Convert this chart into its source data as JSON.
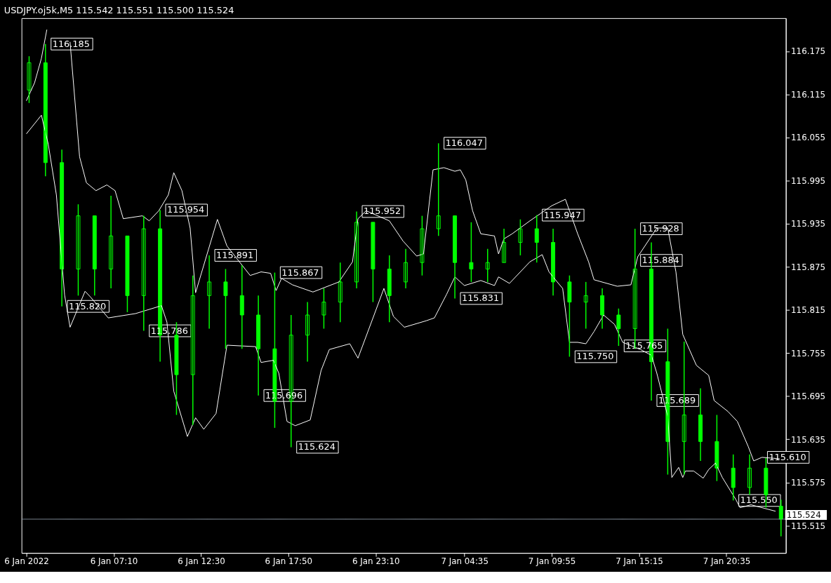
{
  "chart_data": {
    "type": "candlestick",
    "title": "USDJPY.oj5k,M5  115.542 115.551 115.500 115.524",
    "color": "#00ff00",
    "x": [
      "2022-01-06T02:00",
      "2022-01-06T03:00",
      "2022-01-06T04:00",
      "2022-01-06T05:00",
      "2022-01-06T06:00",
      "2022-01-06T07:00",
      "2022-01-06T08:00",
      "2022-01-06T09:00",
      "2022-01-06T10:00",
      "2022-01-06T11:00",
      "2022-01-06T12:00",
      "2022-01-06T13:00",
      "2022-01-06T14:00",
      "2022-01-06T15:00",
      "2022-01-06T16:00",
      "2022-01-06T17:00",
      "2022-01-06T18:00",
      "2022-01-06T19:00",
      "2022-01-06T20:00",
      "2022-01-06T21:00",
      "2022-01-06T22:00",
      "2022-01-06T23:00",
      "2022-01-07T00:00",
      "2022-01-07T01:00",
      "2022-01-07T02:00",
      "2022-01-07T03:00",
      "2022-01-07T04:00",
      "2022-01-07T05:00",
      "2022-01-07T06:00",
      "2022-01-07T07:00",
      "2022-01-07T08:00",
      "2022-01-07T09:00",
      "2022-01-07T10:00",
      "2022-01-07T11:00",
      "2022-01-07T12:00",
      "2022-01-07T13:00",
      "2022-01-07T14:00",
      "2022-01-07T15:00",
      "2022-01-07T16:00",
      "2022-01-07T17:00",
      "2022-01-07T18:00",
      "2022-01-07T19:00",
      "2022-01-07T20:00",
      "2022-01-07T21:00",
      "2022-01-07T22:00",
      "2022-01-07T23:00",
      "2022-01-07T23:55"
    ],
    "ohlc": [
      [
        116.121,
        116.168,
        116.103,
        116.159
      ],
      [
        116.159,
        116.185,
        116.001,
        116.02
      ],
      [
        116.02,
        116.038,
        115.82,
        115.872
      ],
      [
        115.872,
        115.962,
        115.835,
        115.946
      ],
      [
        115.946,
        115.946,
        115.835,
        115.872
      ],
      [
        115.872,
        115.974,
        115.845,
        115.918
      ],
      [
        115.918,
        115.918,
        115.812,
        115.835
      ],
      [
        115.835,
        115.946,
        115.786,
        115.928
      ],
      [
        115.928,
        115.954,
        115.743,
        115.78
      ],
      [
        115.78,
        115.798,
        115.669,
        115.725
      ],
      [
        115.725,
        115.863,
        115.655,
        115.835
      ],
      [
        115.835,
        115.891,
        115.789,
        115.854
      ],
      [
        115.854,
        115.872,
        115.761,
        115.835
      ],
      [
        115.835,
        115.877,
        115.761,
        115.808
      ],
      [
        115.808,
        115.835,
        115.696,
        115.761
      ],
      [
        115.761,
        115.867,
        115.651,
        115.688
      ],
      [
        115.688,
        115.808,
        115.624,
        115.78
      ],
      [
        115.78,
        115.826,
        115.743,
        115.808
      ],
      [
        115.808,
        115.845,
        115.789,
        115.826
      ],
      [
        115.826,
        115.881,
        115.798,
        115.854
      ],
      [
        115.854,
        115.952,
        115.845,
        115.937
      ],
      [
        115.937,
        115.937,
        115.826,
        115.872
      ],
      [
        115.872,
        115.891,
        115.798,
        115.835
      ],
      [
        115.854,
        115.9,
        115.845,
        115.881
      ],
      [
        115.881,
        115.946,
        115.863,
        115.928
      ],
      [
        115.928,
        116.047,
        115.918,
        115.946
      ],
      [
        115.946,
        115.946,
        115.831,
        115.881
      ],
      [
        115.881,
        115.937,
        115.854,
        115.872
      ],
      [
        115.872,
        115.9,
        115.854,
        115.881
      ],
      [
        115.881,
        115.928,
        115.881,
        115.909
      ],
      [
        115.909,
        115.941,
        115.891,
        115.928
      ],
      [
        115.928,
        115.947,
        115.881,
        115.909
      ],
      [
        115.909,
        115.928,
        115.835,
        115.854
      ],
      [
        115.854,
        115.863,
        115.75,
        115.826
      ],
      [
        115.826,
        115.854,
        115.789,
        115.835
      ],
      [
        115.835,
        115.845,
        115.789,
        115.808
      ],
      [
        115.808,
        115.817,
        115.765,
        115.789
      ],
      [
        115.789,
        115.928,
        115.761,
        115.872
      ],
      [
        115.872,
        115.909,
        115.689,
        115.743
      ],
      [
        115.743,
        115.789,
        115.586,
        115.632
      ],
      [
        115.632,
        115.771,
        115.586,
        115.669
      ],
      [
        115.669,
        115.706,
        115.605,
        115.632
      ],
      [
        115.632,
        115.669,
        115.577,
        115.595
      ],
      [
        115.595,
        115.614,
        115.55,
        115.568
      ],
      [
        115.568,
        115.614,
        115.558,
        115.595
      ],
      [
        115.595,
        115.609,
        115.54,
        115.558
      ],
      [
        115.542,
        115.551,
        115.5,
        115.524
      ]
    ],
    "series": [
      {
        "type": "line",
        "color": "#ffffff",
        "x": [
          "2022-01-06T01:50",
          "2022-01-06T02:20",
          "2022-01-06T02:45",
          "2022-01-06T03:05",
          "2022-01-06T03:35",
          "2022-01-06T04:30",
          "2022-01-06T05:05",
          "2022-01-06T05:30",
          "2022-01-06T06:05",
          "2022-01-06T06:45",
          "2022-01-06T07:15",
          "2022-01-06T07:45",
          "2022-01-06T08:55",
          "2022-01-06T09:20",
          "2022-01-06T09:55",
          "2022-01-06T10:30",
          "2022-01-06T10:50",
          "2022-01-06T11:20",
          "2022-01-06T11:50",
          "2022-01-06T12:10",
          "2022-01-06T13:30",
          "2022-01-06T14:05",
          "2022-01-06T15:30",
          "2022-01-06T16:10",
          "2022-01-06T16:45",
          "2022-01-06T17:05",
          "2022-01-06T17:25",
          "2022-01-06T18:05",
          "2022-01-06T19:20",
          "2022-01-06T20:55",
          "2022-01-06T21:45",
          "2022-01-06T22:05",
          "2022-01-06T22:35",
          "2022-01-07T00:00",
          "2022-01-07T00:50",
          "2022-01-07T01:40",
          "2022-01-07T02:05",
          "2022-01-07T02:40",
          "2022-01-07T03:20",
          "2022-01-07T04:00",
          "2022-01-07T04:20",
          "2022-01-07T04:40",
          "2022-01-07T05:05",
          "2022-01-07T05:35",
          "2022-01-07T06:25",
          "2022-01-07T06:40",
          "2022-01-07T07:00",
          "2022-01-07T07:30",
          "2022-01-07T08:35",
          "2022-01-07T09:55",
          "2022-01-07T10:45",
          "2022-01-07T11:30",
          "2022-01-07T12:10",
          "2022-01-07T12:30",
          "2022-01-07T13:55",
          "2022-01-07T14:45",
          "2022-01-07T15:10",
          "2022-01-07T16:20",
          "2022-01-07T17:00",
          "2022-01-07T17:30",
          "2022-01-07T17:55",
          "2022-01-07T18:45",
          "2022-01-07T19:30",
          "2022-01-07T19:50",
          "2022-01-07T20:40",
          "2022-01-07T21:15",
          "2022-01-07T21:55",
          "2022-01-07T22:15",
          "2022-01-07T22:45",
          "2022-01-07T23:50"
        ],
        "values": [
          116.106,
          116.131,
          116.165,
          116.205,
          null,
          116.188,
          116.028,
          115.992,
          115.981,
          115.989,
          115.981,
          115.942,
          115.946,
          115.939,
          115.953,
          115.975,
          116.006,
          115.981,
          115.929,
          115.839,
          115.941,
          115.904,
          115.863,
          115.868,
          115.866,
          115.842,
          115.859,
          115.85,
          115.84,
          115.854,
          115.882,
          115.942,
          115.953,
          115.939,
          115.911,
          115.89,
          115.893,
          116.01,
          116.013,
          116.008,
          116.01,
          115.996,
          115.953,
          115.921,
          115.918,
          115.893,
          115.914,
          115.921,
          115.939,
          115.96,
          115.969,
          115.921,
          115.882,
          115.857,
          115.848,
          115.85,
          115.889,
          115.929,
          115.929,
          115.868,
          115.781,
          115.738,
          115.724,
          115.689,
          115.674,
          115.66,
          115.625,
          115.605,
          115.61,
          115.608
        ]
      },
      {
        "type": "line",
        "color": "#ffffff",
        "x": [
          "2022-01-06T01:50",
          "2022-01-06T02:45",
          "2022-01-06T03:10",
          "2022-01-06T03:40",
          "2022-01-06T04:10",
          "2022-01-06T04:30",
          "2022-01-06T05:25",
          "2022-01-06T05:45",
          "2022-01-06T06:50",
          "2022-01-06T08:30",
          "2022-01-06T10:05",
          "2022-01-06T10:25",
          "2022-01-06T10:50",
          "2022-01-06T11:40",
          "2022-01-06T12:10",
          "2022-01-06T12:40",
          "2022-01-06T13:25",
          "2022-01-06T14:05",
          "2022-01-06T15:50",
          "2022-01-06T16:10",
          "2022-01-06T16:55",
          "2022-01-06T17:15",
          "2022-01-06T17:45",
          "2022-01-06T18:15",
          "2022-01-06T19:10",
          "2022-01-06T19:50",
          "2022-01-06T20:20",
          "2022-01-06T21:35",
          "2022-01-06T22:05",
          "2022-01-06T23:05",
          "2022-01-06T23:40",
          "2022-01-07T00:15",
          "2022-01-07T00:55",
          "2022-01-07T02:15",
          "2022-01-07T02:45",
          "2022-01-07T03:30",
          "2022-01-07T04:00",
          "2022-01-07T04:35",
          "2022-01-07T05:35",
          "2022-01-07T06:25",
          "2022-01-07T06:40",
          "2022-01-07T07:20",
          "2022-01-07T08:35",
          "2022-01-07T09:20",
          "2022-01-07T09:45",
          "2022-01-07T10:15",
          "2022-01-07T10:35",
          "2022-01-07T11:00",
          "2022-01-07T11:30",
          "2022-01-07T12:00",
          "2022-01-07T12:30",
          "2022-01-07T13:05",
          "2022-01-07T13:45",
          "2022-01-07T14:15",
          "2022-01-07T15:20",
          "2022-01-07T16:00",
          "2022-01-07T16:20",
          "2022-01-07T17:00",
          "2022-01-07T17:15",
          "2022-01-07T17:40",
          "2022-01-07T17:55",
          "2022-01-07T18:05",
          "2022-01-07T18:35",
          "2022-01-07T19:10",
          "2022-01-07T19:30",
          "2022-01-07T19:55",
          "2022-01-07T20:20",
          "2022-01-07T21:10",
          "2022-01-07T21:25",
          "2022-01-07T22:05",
          "2022-01-07T23:35"
        ],
        "values": [
          116.06,
          116.086,
          116.046,
          115.975,
          115.836,
          115.791,
          115.841,
          115.833,
          115.804,
          115.81,
          115.821,
          115.798,
          115.702,
          115.639,
          115.665,
          115.649,
          115.671,
          115.766,
          115.764,
          115.742,
          115.745,
          115.727,
          115.66,
          115.654,
          115.662,
          115.731,
          115.76,
          115.768,
          115.748,
          115.809,
          115.845,
          115.806,
          115.791,
          115.8,
          115.804,
          115.837,
          115.861,
          115.849,
          115.856,
          115.849,
          115.861,
          115.852,
          115.882,
          115.892,
          115.868,
          115.854,
          115.845,
          115.77,
          115.77,
          115.768,
          115.785,
          115.808,
          115.795,
          115.77,
          115.76,
          115.752,
          115.727,
          115.667,
          115.582,
          115.596,
          115.582,
          115.591,
          115.591,
          115.581,
          115.593,
          115.602,
          115.582,
          115.551,
          115.54,
          115.544,
          115.535
        ]
      }
    ],
    "xlim": [
      "2022-01-06T01:45",
      "2022-01-08T00:00"
    ],
    "xticks": [
      {
        "value": "2022-01-06T01:50",
        "label": "6 Jan 2022"
      },
      {
        "value": "2022-01-06T07:10",
        "label": "6 Jan 07:10"
      },
      {
        "value": "2022-01-06T12:30",
        "label": "6 Jan 12:30"
      },
      {
        "value": "2022-01-06T17:50",
        "label": "6 Jan 17:50"
      },
      {
        "value": "2022-01-06T23:10",
        "label": "6 Jan 23:10"
      },
      {
        "value": "2022-01-07T04:35",
        "label": "7 Jan 04:35"
      },
      {
        "value": "2022-01-07T09:55",
        "label": "7 Jan 09:55"
      },
      {
        "value": "2022-01-07T15:15",
        "label": "7 Jan 15:15"
      },
      {
        "value": "2022-01-07T20:35",
        "label": "7 Jan 20:35"
      }
    ],
    "ylim": [
      115.477,
      116.221
    ],
    "yticks": [
      115.515,
      115.575,
      115.635,
      115.695,
      115.755,
      115.815,
      115.875,
      115.935,
      115.995,
      116.055,
      116.115,
      116.175
    ],
    "annotations": [
      {
        "text": "116.185",
        "x": "2022-01-06T03:00",
        "y": 116.185
      },
      {
        "text": "115.820",
        "x": "2022-01-06T04:00",
        "y": 115.82
      },
      {
        "text": "115.954",
        "x": "2022-01-06T10:00",
        "y": 115.954
      },
      {
        "text": "115.786",
        "x": "2022-01-06T09:00",
        "y": 115.786
      },
      {
        "text": "115.891",
        "x": "2022-01-06T13:00",
        "y": 115.891
      },
      {
        "text": "115.867",
        "x": "2022-01-06T17:00",
        "y": 115.867
      },
      {
        "text": "115.696",
        "x": "2022-01-06T16:00",
        "y": 115.696
      },
      {
        "text": "115.624",
        "x": "2022-01-06T18:00",
        "y": 115.624
      },
      {
        "text": "115.952",
        "x": "2022-01-06T22:00",
        "y": 115.952
      },
      {
        "text": "116.047",
        "x": "2022-01-07T03:00",
        "y": 116.047
      },
      {
        "text": "115.831",
        "x": "2022-01-07T04:00",
        "y": 115.831
      },
      {
        "text": "115.947",
        "x": "2022-01-07T09:00",
        "y": 115.947
      },
      {
        "text": "115.750",
        "x": "2022-01-07T11:00",
        "y": 115.75
      },
      {
        "text": "115.765",
        "x": "2022-01-07T14:00",
        "y": 115.765
      },
      {
        "text": "115.928",
        "x": "2022-01-07T15:00",
        "y": 115.928
      },
      {
        "text": "115.884",
        "x": "2022-01-07T15:00",
        "y": 115.884
      },
      {
        "text": "115.689",
        "x": "2022-01-07T16:00",
        "y": 115.689
      },
      {
        "text": "115.550",
        "x": "2022-01-07T21:00",
        "y": 115.55
      },
      {
        "text": "115.610",
        "x": "2022-01-07T22:45",
        "y": 115.61
      }
    ],
    "ref_lines": [
      {
        "axis": "y",
        "value": 115.524,
        "label": "115.524",
        "color": "#8a96a3"
      }
    ],
    "grid": false
  }
}
